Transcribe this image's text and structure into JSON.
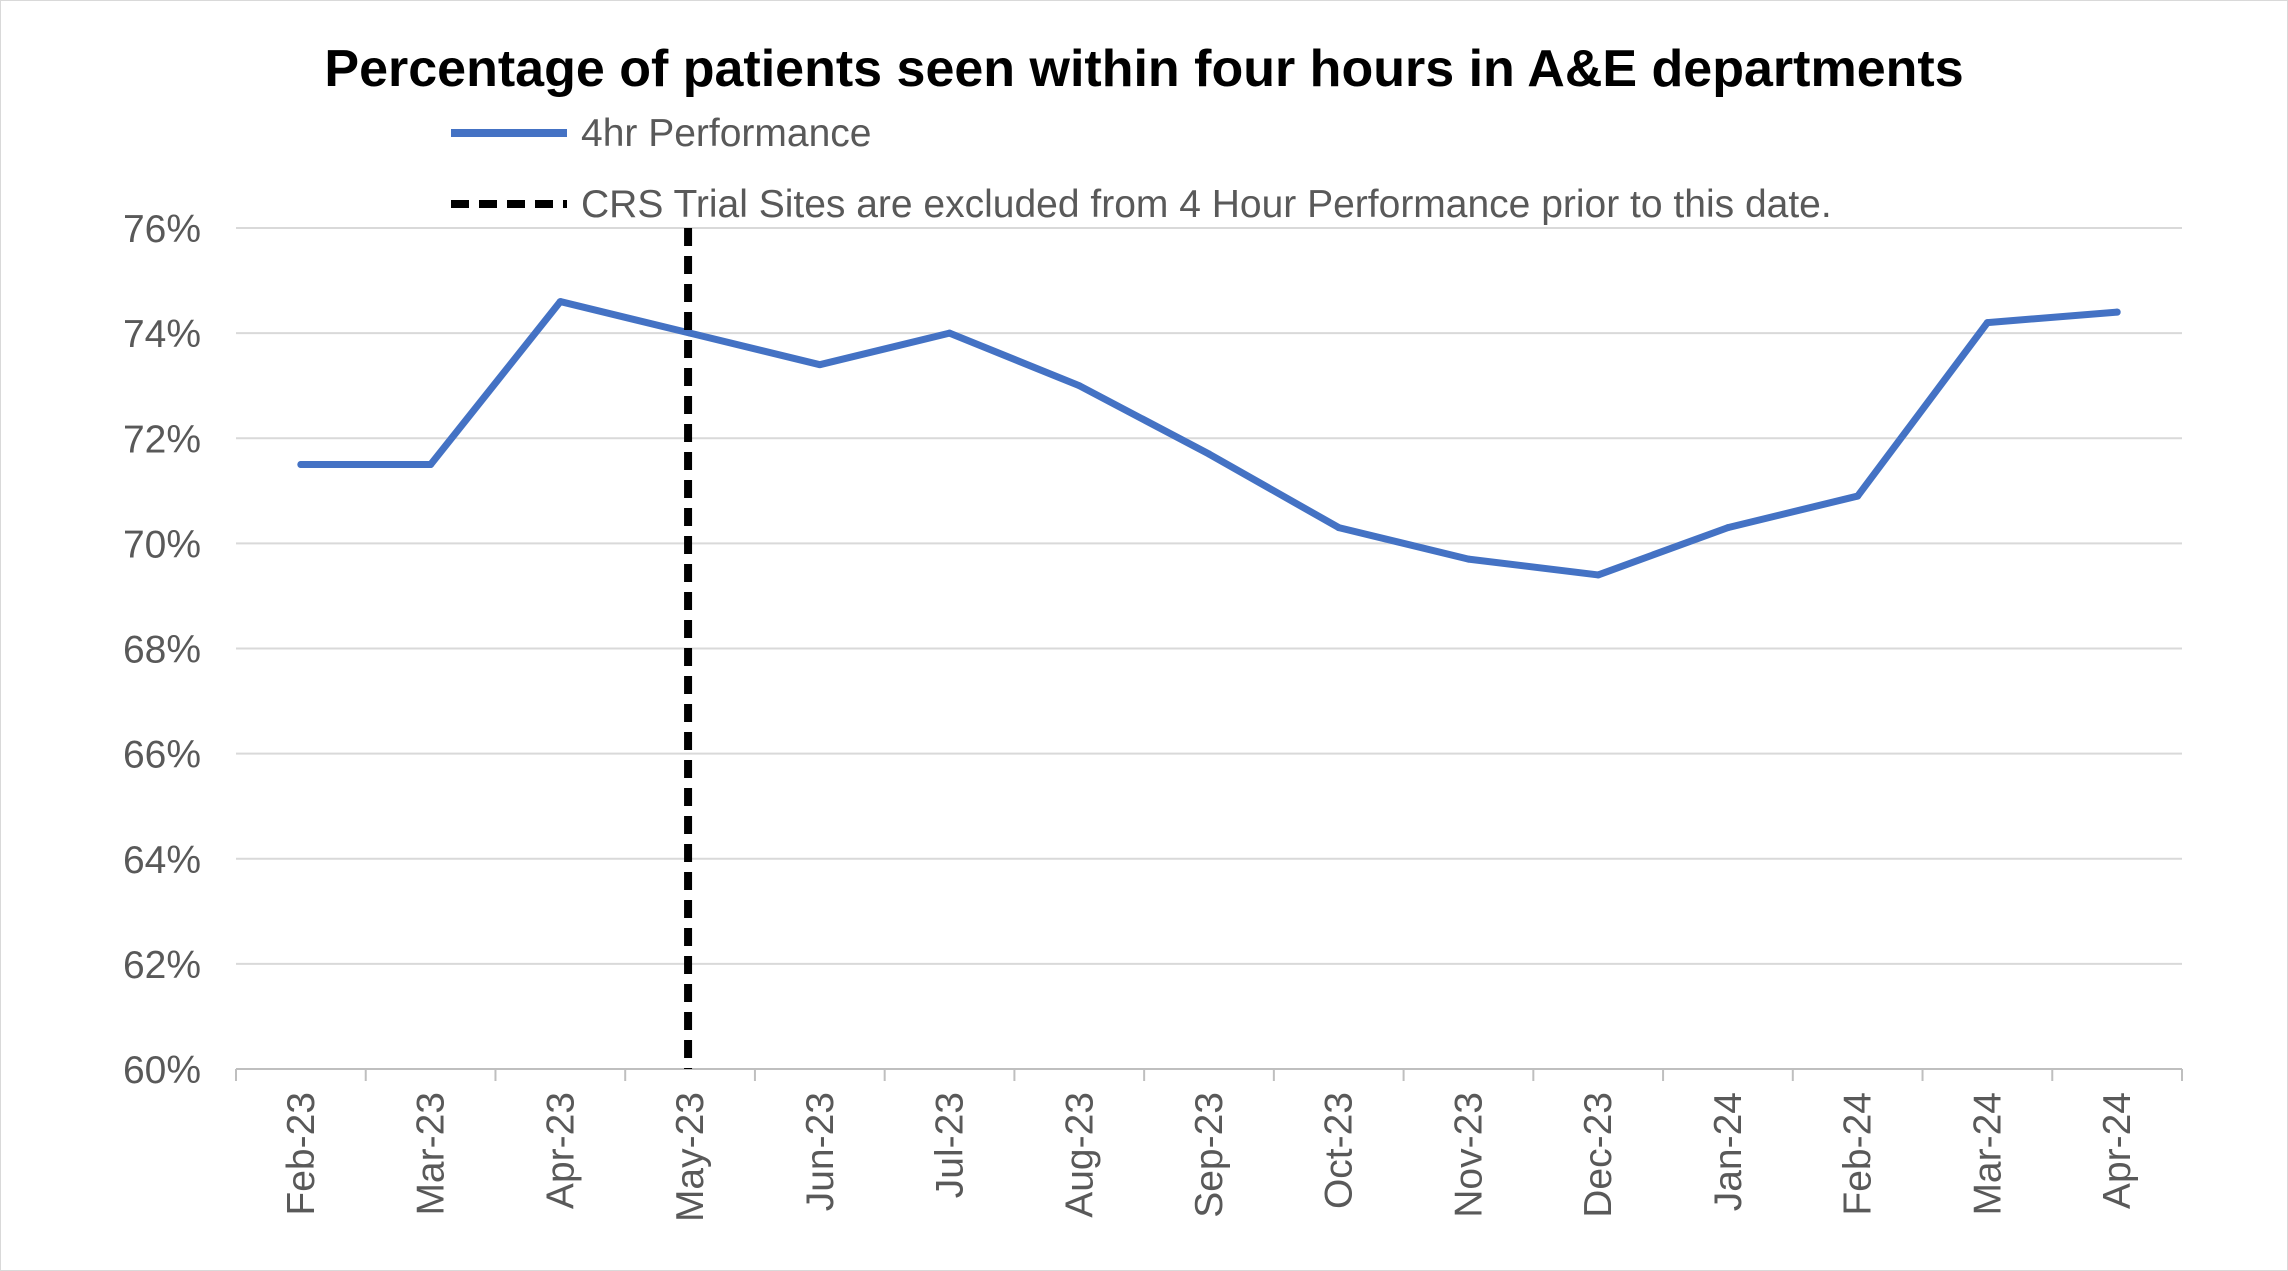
{
  "chart_data": {
    "type": "line",
    "title": "Percentage of patients seen within four hours in A&E departments",
    "xlabel": "",
    "ylabel": "",
    "categories": [
      "Feb-23",
      "Mar-23",
      "Apr-23",
      "May-23",
      "Jun-23",
      "Jul-23",
      "Aug-23",
      "Sep-23",
      "Oct-23",
      "Nov-23",
      "Dec-23",
      "Jan-24",
      "Feb-24",
      "Mar-24",
      "Apr-24"
    ],
    "series": [
      {
        "name": "4hr Performance",
        "color": "#4472c4",
        "values": [
          71.5,
          71.5,
          74.6,
          74.0,
          73.4,
          74.0,
          73.0,
          71.7,
          70.3,
          69.7,
          69.4,
          70.3,
          70.9,
          74.2,
          74.4
        ]
      }
    ],
    "reference_line": {
      "label": "CRS Trial Sites are excluded from 4 Hour Performance prior to this date.",
      "category": "May-23",
      "style": "dashed",
      "color": "#000000"
    },
    "ylim": [
      60,
      76
    ],
    "yticks": [
      "60%",
      "62%",
      "64%",
      "66%",
      "68%",
      "70%",
      "72%",
      "74%",
      "76%"
    ],
    "grid": true,
    "legend_position": "top"
  }
}
